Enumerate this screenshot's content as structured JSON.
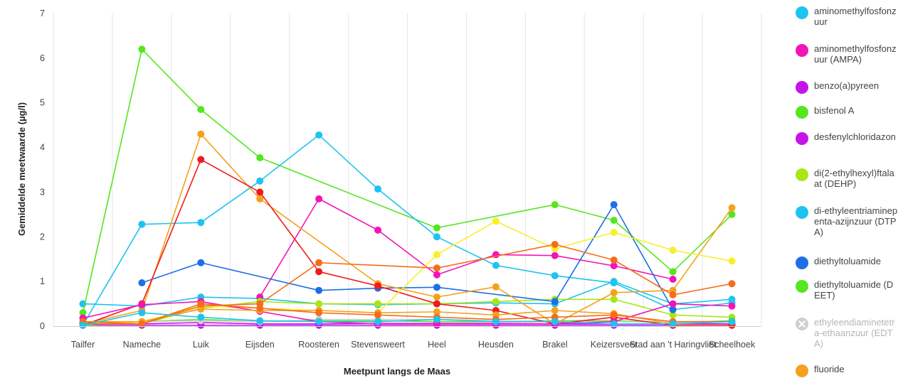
{
  "chart_data": {
    "type": "line",
    "xlabel": "Meetpunt langs de Maas",
    "ylabel": "Gemiddelde meetwaarde (µg/l)",
    "ylim": [
      0,
      7
    ],
    "yticks": [
      "0",
      "1",
      "2",
      "3",
      "4",
      "5",
      "6",
      "7"
    ],
    "grid": "vertical",
    "legend_position": "right",
    "categories": [
      "Tailfer",
      "Nameche",
      "Luik",
      "Eijsden",
      "Roosteren",
      "Stevensweert",
      "Heel",
      "Heusden",
      "Brakel",
      "Keizersveer",
      "Stad aan 't Haringvliet",
      "Scheelhoek"
    ],
    "series": [
      {
        "name": "aminomethylfosfonzuur",
        "color": "#1ec3f0",
        "values": [
          0.5,
          0.45,
          0.65,
          0.62,
          0.5,
          0.48,
          0.5,
          0.52,
          0.5,
          1.0,
          0.5,
          0.6
        ]
      },
      {
        "name": "aminomethylfosfonzuur (AMPA)",
        "color": "#f314b8",
        "values": [
          null,
          null,
          null,
          0.65,
          2.85,
          2.15,
          1.15,
          1.6,
          1.58,
          1.35,
          1.05,
          null
        ]
      },
      {
        "name": "benzo(a)pyreen",
        "color": "#c414ec",
        "values": [
          0.02,
          0.02,
          0.02,
          0.02,
          0.02,
          0.02,
          0.02,
          0.02,
          0.02,
          0.02,
          0.02,
          0.02
        ]
      },
      {
        "name": "bisfenol A",
        "color": "#55e61f",
        "values": [
          0.3,
          6.2,
          4.85,
          3.77,
          null,
          null,
          2.2,
          null,
          2.72,
          2.37,
          1.22,
          2.5
        ]
      },
      {
        "name": "desfenylchloridazon",
        "color": "#c414ec",
        "values": [
          0.05,
          0.05,
          0.08,
          0.05,
          0.05,
          0.06,
          0.06,
          0.06,
          0.05,
          0.05,
          0.05,
          0.05
        ]
      },
      {
        "name": "di(2-ethylhexyl)ftalaat (DEHP)",
        "color": "#a8e616",
        "values": [
          0.05,
          0.05,
          0.4,
          0.55,
          0.5,
          0.5,
          0.5,
          0.55,
          0.6,
          0.6,
          0.25,
          0.2
        ]
      },
      {
        "name": "di-ethyleentriaminepenta-azijnzuur (DTPA)",
        "color": "#1ec3f0",
        "values": [
          0.02,
          2.28,
          2.32,
          3.25,
          4.28,
          3.07,
          2.0,
          1.36,
          1.13,
          0.97,
          0.37,
          0.52
        ]
      },
      {
        "name": "diethyltoluamide",
        "color": "#1e6fe6",
        "values": [
          null,
          0.97,
          1.42,
          null,
          0.8,
          0.85,
          0.87,
          null,
          0.55,
          2.72,
          0.37,
          null
        ]
      },
      {
        "name": "diethyltoluamide (DEET)",
        "color": "#55e61f",
        "values": [
          0.02,
          0.1,
          0.15,
          0.1,
          0.12,
          0.12,
          0.1,
          0.1,
          0.12,
          0.12,
          0.08,
          0.12
        ]
      },
      {
        "name": "ethyleendiaminetetra-ethaanzuur (EDTA)",
        "color": "#cfcfcf",
        "values": [
          0.05,
          0.1,
          0.12,
          0.1,
          0.15,
          0.15,
          0.15,
          0.12,
          0.1,
          0.1,
          0.08,
          0.1
        ]
      },
      {
        "name": "fluoride",
        "color": "#f5a11c",
        "values": [
          0.05,
          0.35,
          4.3,
          2.85,
          null,
          0.95,
          0.65,
          0.88,
          0.05,
          0.75,
          0.8,
          2.65
        ]
      },
      {
        "name": "",
        "color": "#ef1c1c",
        "values": [
          0.02,
          0.5,
          3.73,
          3.0,
          1.22,
          0.9,
          0.5,
          0.35,
          0.05,
          0.2,
          0.02,
          0.02
        ]
      },
      {
        "name": "",
        "color": "#f8ef2a",
        "values": [
          0.05,
          0.1,
          0.45,
          0.4,
          0.35,
          0.3,
          1.6,
          2.35,
          1.73,
          2.1,
          1.7,
          1.46
        ]
      },
      {
        "name": "",
        "color": "#f46d1c",
        "values": [
          0.05,
          0.05,
          0.45,
          0.5,
          1.42,
          null,
          1.3,
          null,
          1.83,
          1.48,
          0.7,
          0.95
        ]
      },
      {
        "name": "",
        "color": "#f314b8",
        "values": [
          0.18,
          0.48,
          0.55,
          0.33,
          0.1,
          0.05,
          0.05,
          0.05,
          0.05,
          0.1,
          0.5,
          0.45
        ]
      },
      {
        "name": "",
        "color": "#f5a11c",
        "values": [
          0.1,
          0.1,
          0.38,
          0.35,
          0.35,
          0.3,
          0.32,
          0.25,
          0.35,
          0.28,
          0.05,
          0.1
        ]
      },
      {
        "name": "",
        "color": "#f46d1c",
        "values": [
          0.1,
          0.05,
          0.5,
          0.4,
          0.3,
          0.25,
          0.2,
          0.15,
          0.2,
          0.25,
          0.1,
          0.1
        ]
      },
      {
        "name": "",
        "color": "#1ec3f0",
        "values": [
          0.02,
          0.3,
          0.2,
          0.12,
          0.1,
          0.1,
          0.15,
          0.1,
          0.1,
          0.05,
          0.05,
          0.1
        ]
      }
    ]
  },
  "legend": {
    "items": [
      {
        "label": "aminomethylfosfonzuur",
        "color": "#1ec3f0",
        "disabled": false
      },
      {
        "label": "aminomethylfosfonzuur (AMPA)",
        "color": "#f314b8",
        "disabled": false
      },
      {
        "label": "benzo(a)pyreen",
        "color": "#c414ec",
        "disabled": false
      },
      {
        "label": "bisfenol A",
        "color": "#55e61f",
        "disabled": false
      },
      {
        "label": "desfenylchloridazon",
        "color": "#c414ec",
        "disabled": false
      },
      {
        "label": "di(2-ethylhexyl)ftalaat (DEHP)",
        "color": "#a8e616",
        "disabled": false
      },
      {
        "label": "di-ethyleentriaminepenta-azijnzuur (DTPA)",
        "color": "#1ec3f0",
        "disabled": false
      },
      {
        "label": "diethyltoluamide",
        "color": "#1e6fe6",
        "disabled": false
      },
      {
        "label": "diethyltoluamide (DEET)",
        "color": "#55e61f",
        "disabled": false
      },
      {
        "label": "ethyleendiaminetetra-ethaanzuur (EDTA)",
        "color": "#cfcfcf",
        "disabled": true
      },
      {
        "label": "fluoride",
        "color": "#f5a11c",
        "disabled": false
      }
    ]
  }
}
